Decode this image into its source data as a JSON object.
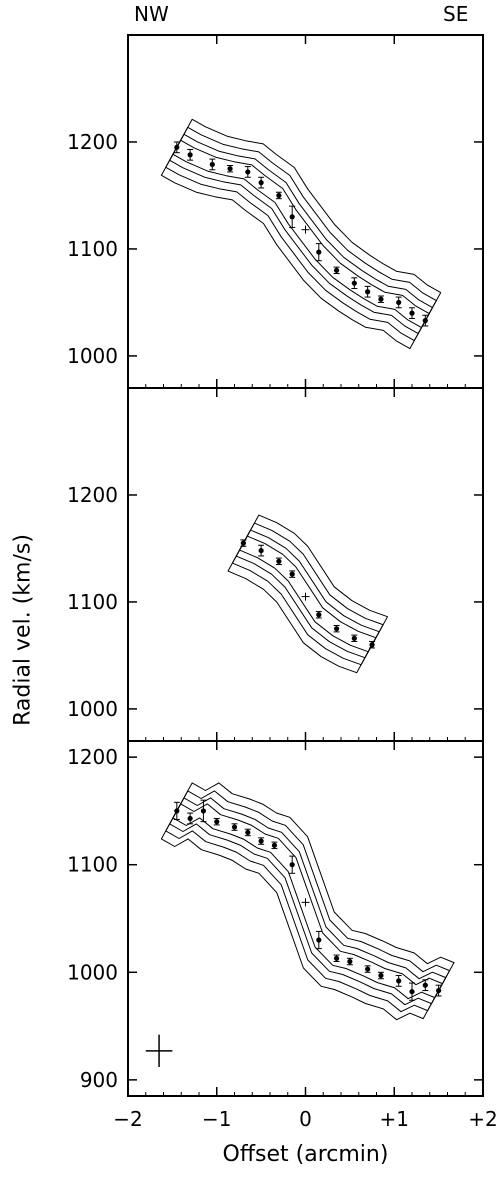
{
  "figure": {
    "corner_left": "NW",
    "corner_right": "SE",
    "xlabel": "Offset (arcmin)",
    "ylabel": "Radial vel. (km/s)",
    "x_tick_labels": [
      "−2",
      "−1",
      "0",
      "+1",
      "+2"
    ]
  },
  "chart_data": [
    {
      "type": "scatter",
      "panel": "top",
      "xlim": [
        -2,
        2
      ],
      "ylim": [
        970,
        1300
      ],
      "y_ticks": [
        1000,
        1100,
        1200
      ],
      "y_tick_labels": [
        "1000",
        "1100",
        "1200"
      ],
      "series": [
        {
          "marker": "filled-circle-with-errorbar",
          "points": [
            {
              "x": -1.45,
              "y": 1195,
              "err": 5
            },
            {
              "x": -1.3,
              "y": 1188,
              "err": 5
            },
            {
              "x": -1.05,
              "y": 1179,
              "err": 5
            },
            {
              "x": -0.85,
              "y": 1175,
              "err": 3
            },
            {
              "x": -0.65,
              "y": 1172,
              "err": 5
            },
            {
              "x": -0.5,
              "y": 1162,
              "err": 5
            },
            {
              "x": -0.3,
              "y": 1150,
              "err": 3
            },
            {
              "x": -0.15,
              "y": 1130,
              "err": 10
            },
            {
              "x": 0.15,
              "y": 1097,
              "err": 8
            },
            {
              "x": 0.35,
              "y": 1080,
              "err": 3
            },
            {
              "x": 0.55,
              "y": 1068,
              "err": 5
            },
            {
              "x": 0.7,
              "y": 1060,
              "err": 5
            },
            {
              "x": 0.85,
              "y": 1053,
              "err": 3
            },
            {
              "x": 1.05,
              "y": 1050,
              "err": 5
            },
            {
              "x": 1.2,
              "y": 1040,
              "err": 5
            },
            {
              "x": 1.35,
              "y": 1033,
              "err": 5
            }
          ]
        }
      ],
      "center_marker": {
        "x": 0.0,
        "y": 1118
      }
    },
    {
      "type": "scatter",
      "panel": "middle",
      "xlim": [
        -2,
        2
      ],
      "ylim": [
        970,
        1300
      ],
      "y_ticks": [
        1000,
        1100,
        1200
      ],
      "y_tick_labels": [
        "1000",
        "1100",
        "1200"
      ],
      "series": [
        {
          "marker": "filled-circle-with-errorbar",
          "points": [
            {
              "x": -0.7,
              "y": 1155,
              "err": 3
            },
            {
              "x": -0.5,
              "y": 1148,
              "err": 5
            },
            {
              "x": -0.3,
              "y": 1138,
              "err": 3
            },
            {
              "x": -0.15,
              "y": 1126,
              "err": 3
            },
            {
              "x": 0.15,
              "y": 1088,
              "err": 3
            },
            {
              "x": 0.35,
              "y": 1075,
              "err": 3
            },
            {
              "x": 0.55,
              "y": 1066,
              "err": 3
            },
            {
              "x": 0.75,
              "y": 1060,
              "err": 3
            }
          ]
        }
      ],
      "center_marker": {
        "x": 0.0,
        "y": 1105
      }
    },
    {
      "type": "scatter",
      "panel": "bottom",
      "xlim": [
        -2,
        2
      ],
      "ylim": [
        885,
        1215
      ],
      "y_ticks": [
        900,
        1000,
        1100,
        1200
      ],
      "y_tick_labels": [
        "900",
        "1000",
        "1100",
        "1200"
      ],
      "series": [
        {
          "marker": "filled-circle-with-errorbar",
          "points": [
            {
              "x": -1.45,
              "y": 1150,
              "err": 8
            },
            {
              "x": -1.3,
              "y": 1143,
              "err": 5
            },
            {
              "x": -1.15,
              "y": 1150,
              "err": 10
            },
            {
              "x": -1.0,
              "y": 1140,
              "err": 3
            },
            {
              "x": -0.8,
              "y": 1135,
              "err": 3
            },
            {
              "x": -0.65,
              "y": 1130,
              "err": 3
            },
            {
              "x": -0.5,
              "y": 1122,
              "err": 3
            },
            {
              "x": -0.35,
              "y": 1118,
              "err": 3
            },
            {
              "x": -0.15,
              "y": 1100,
              "err": 8
            },
            {
              "x": 0.15,
              "y": 1030,
              "err": 8
            },
            {
              "x": 0.35,
              "y": 1013,
              "err": 3
            },
            {
              "x": 0.5,
              "y": 1010,
              "err": 3
            },
            {
              "x": 0.7,
              "y": 1003,
              "err": 3
            },
            {
              "x": 0.85,
              "y": 997,
              "err": 3
            },
            {
              "x": 1.05,
              "y": 992,
              "err": 5
            },
            {
              "x": 1.2,
              "y": 982,
              "err": 8
            },
            {
              "x": 1.35,
              "y": 988,
              "err": 5
            },
            {
              "x": 1.5,
              "y": 983,
              "err": 5
            }
          ]
        }
      ],
      "center_marker": {
        "x": 0.0,
        "y": 1065
      },
      "resolution_cross": {
        "x": -1.65,
        "y": 927,
        "dx": 0.15,
        "dy": 15
      }
    }
  ]
}
